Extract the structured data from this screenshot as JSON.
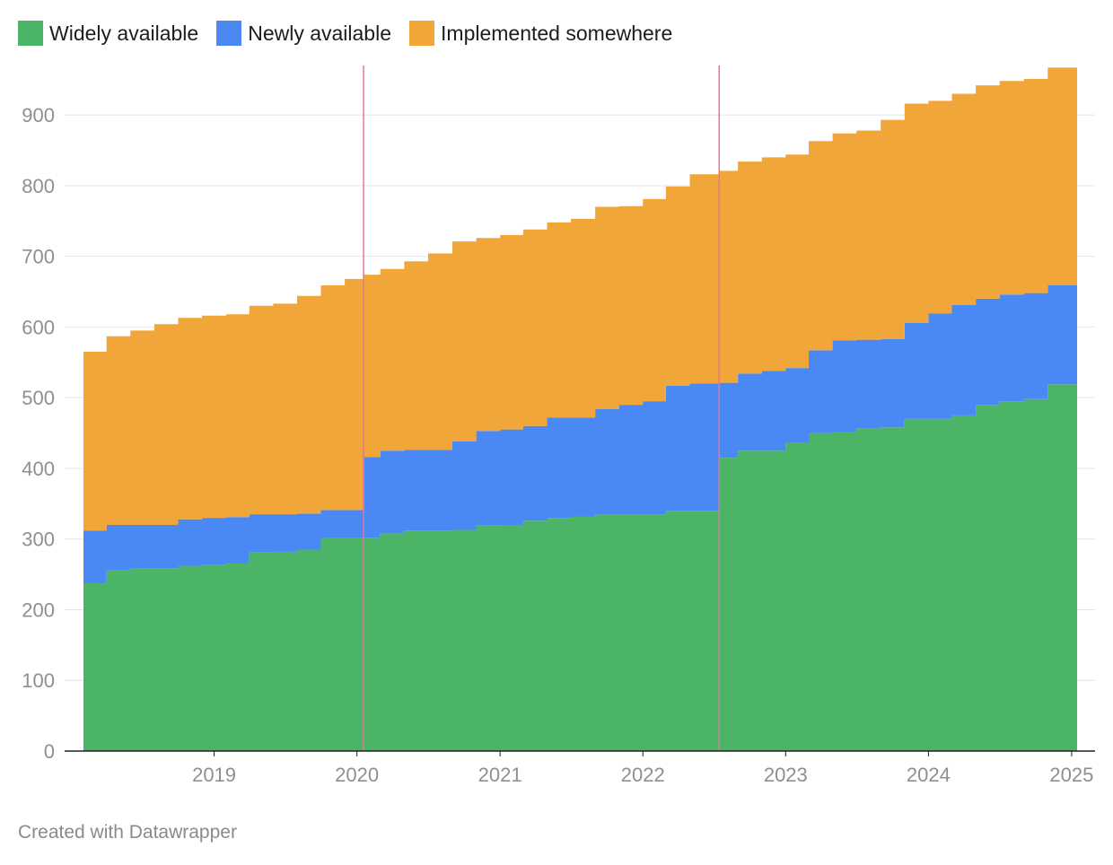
{
  "colors": {
    "widely": "#4bb466",
    "newly": "#4a88f4",
    "implemented": "#f1a63a",
    "annotation_line": "#e8749a",
    "grid": "#e4e4e4",
    "axis": "#222222"
  },
  "chart_data": {
    "type": "area",
    "stacked": true,
    "title": "",
    "xlabel": "",
    "ylabel": "",
    "legend_position": "top-left",
    "grid": true,
    "xlim": [
      "2018-02-01",
      "2025-01-15"
    ],
    "ylim": [
      0,
      970
    ],
    "yticks": [
      0,
      100,
      200,
      300,
      400,
      500,
      600,
      700,
      800,
      900
    ],
    "xticks": [
      {
        "date": "2019-01-01",
        "label": "2019"
      },
      {
        "date": "2020-01-01",
        "label": "2020"
      },
      {
        "date": "2021-01-01",
        "label": "2021"
      },
      {
        "date": "2022-01-01",
        "label": "2022"
      },
      {
        "date": "2023-01-01",
        "label": "2023"
      },
      {
        "date": "2024-01-01",
        "label": "2024"
      },
      {
        "date": "2025-01-01",
        "label": "2025"
      }
    ],
    "annotation_lines": [
      "2020-01-18",
      "2022-07-15"
    ],
    "x": [
      "2018-02-01",
      "2018-04-01",
      "2018-06-01",
      "2018-08-01",
      "2018-10-01",
      "2018-12-01",
      "2019-02-01",
      "2019-04-01",
      "2019-06-01",
      "2019-08-01",
      "2019-10-01",
      "2019-12-01",
      "2020-01-18",
      "2020-03-01",
      "2020-05-01",
      "2020-07-01",
      "2020-09-01",
      "2020-11-01",
      "2021-01-01",
      "2021-03-01",
      "2021-05-01",
      "2021-07-01",
      "2021-09-01",
      "2021-11-01",
      "2022-01-01",
      "2022-03-01",
      "2022-05-01",
      "2022-07-15",
      "2022-09-01",
      "2022-11-01",
      "2023-01-01",
      "2023-03-01",
      "2023-05-01",
      "2023-07-01",
      "2023-09-01",
      "2023-11-01",
      "2024-01-01",
      "2024-03-01",
      "2024-05-01",
      "2024-07-01",
      "2024-09-01",
      "2024-11-01",
      "2025-01-15"
    ],
    "series": [
      {
        "name": "Widely available",
        "values": [
          238,
          256,
          258,
          258,
          262,
          264,
          266,
          281,
          282,
          285,
          301,
          301,
          302,
          308,
          312,
          312,
          313,
          319,
          320,
          326,
          330,
          332,
          335,
          335,
          335,
          340,
          340,
          415,
          425,
          425,
          436,
          450,
          452,
          456,
          458,
          470,
          470,
          475,
          490,
          495,
          498,
          519,
          521
        ]
      },
      {
        "name": "Newly available",
        "values": [
          74,
          64,
          62,
          62,
          66,
          66,
          65,
          54,
          53,
          51,
          40,
          40,
          114,
          117,
          114,
          114,
          125,
          134,
          135,
          134,
          142,
          140,
          149,
          155,
          160,
          177,
          180,
          106,
          109,
          113,
          106,
          117,
          129,
          126,
          125,
          136,
          149,
          156,
          150,
          151,
          150,
          140,
          152
        ]
      },
      {
        "name": "Implemented somewhere",
        "values": [
          253,
          267,
          275,
          284,
          285,
          286,
          287,
          295,
          298,
          308,
          318,
          327,
          258,
          257,
          267,
          278,
          283,
          273,
          275,
          278,
          276,
          281,
          286,
          281,
          286,
          282,
          296,
          300,
          300,
          302,
          302,
          296,
          293,
          296,
          310,
          310,
          301,
          299,
          302,
          302,
          303,
          308,
          298
        ]
      }
    ]
  },
  "credit": "Created with Datawrapper"
}
